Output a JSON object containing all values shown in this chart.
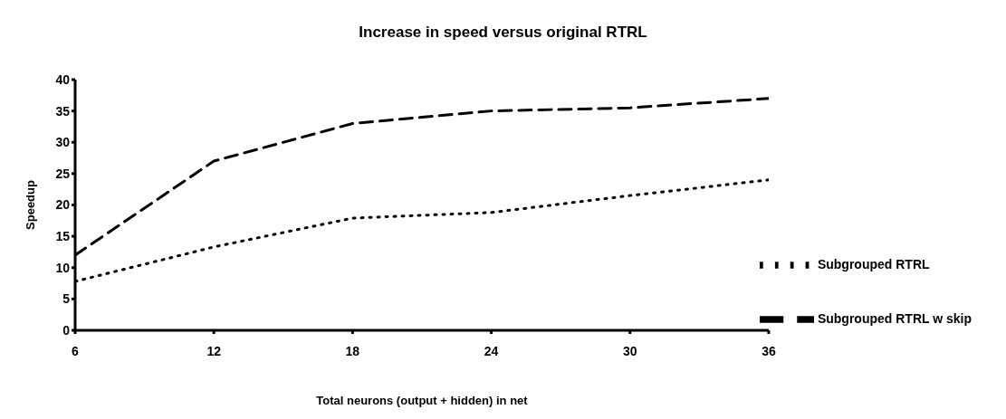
{
  "chart_data": {
    "type": "line",
    "title": "Increase in speed versus original RTRL",
    "xlabel": "Total neurons (output + hidden) in net",
    "ylabel": "Speedup",
    "x": [
      6,
      12,
      18,
      24,
      30,
      36
    ],
    "series": [
      {
        "name": "Subgrouped RTRL",
        "color": "#000000",
        "line_style": "dotted",
        "values": [
          7.8,
          13.3,
          17.9,
          18.8,
          21.5,
          24
        ]
      },
      {
        "name": "Subgrouped RTRL w skip",
        "color": "#000000",
        "line_style": "dashed",
        "values": [
          12,
          27,
          33,
          35,
          35.5,
          37
        ]
      }
    ],
    "xlim": [
      6,
      36
    ],
    "xticks": [
      6,
      12,
      18,
      24,
      30,
      36
    ],
    "ylim": [
      0,
      40
    ],
    "yticks": [
      0,
      5,
      10,
      15,
      20,
      25,
      30,
      35,
      40
    ],
    "grid": false,
    "legend": "right",
    "marker": "none"
  }
}
